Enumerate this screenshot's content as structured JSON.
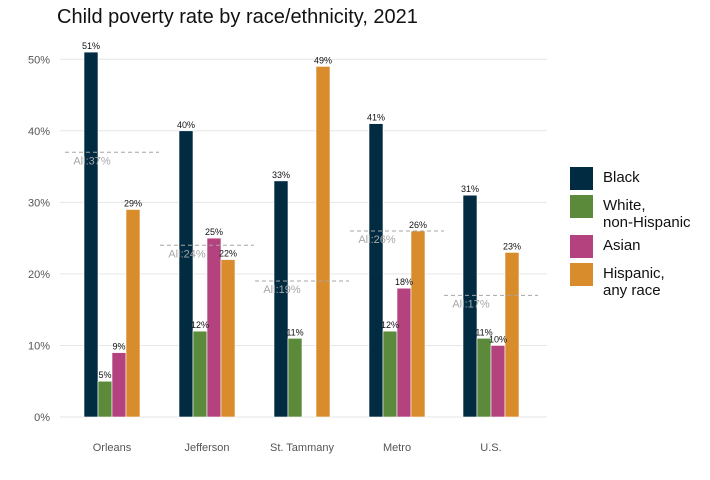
{
  "title": "Child poverty rate by race/ethnicity, 2021",
  "colors": {
    "Black": "#002b41",
    "White, non-Hispanic": "#5a8a3a",
    "Asian": "#b3427e",
    "Hispanic, any race": "#d98c2b",
    "grid": "#e6e6e6",
    "avg_line": "#a6a6a6",
    "avg_text": "#a6a6a6"
  },
  "legend": [
    {
      "key": "Black",
      "label": "Black"
    },
    {
      "key": "White, non-Hispanic",
      "label": "White,\nnon-Hispanic"
    },
    {
      "key": "Asian",
      "label": "Asian"
    },
    {
      "key": "Hispanic, any race",
      "label": "Hispanic,\nany race"
    }
  ],
  "chart_data": {
    "type": "bar",
    "title": "Child poverty rate by race/ethnicity, 2021",
    "xlabel": "",
    "ylabel": "",
    "ylim": [
      0,
      0.52
    ],
    "yticks": [
      0,
      0.1,
      0.2,
      0.3,
      0.4,
      0.5
    ],
    "ytick_labels": [
      "0%",
      "10%",
      "20%",
      "30%",
      "40%",
      "50%"
    ],
    "grid": true,
    "legend_position": "right",
    "categories": [
      "Orleans",
      "Jefferson",
      "St. Tammany",
      "Metro",
      "U.S."
    ],
    "series": [
      {
        "name": "Black",
        "values": [
          0.51,
          0.4,
          0.33,
          0.41,
          0.31
        ],
        "labels": [
          "51%",
          "40%",
          "33%",
          "41%",
          "31%"
        ]
      },
      {
        "name": "White, non-Hispanic",
        "values": [
          0.05,
          0.12,
          0.11,
          0.12,
          0.11
        ],
        "labels": [
          "5%",
          "12%",
          "11%",
          "12%",
          "11%"
        ]
      },
      {
        "name": "Asian",
        "values": [
          0.09,
          0.25,
          null,
          0.18,
          0.1
        ],
        "labels": [
          "9%",
          "25%",
          "",
          "18%",
          "10%"
        ]
      },
      {
        "name": "Hispanic, any race",
        "values": [
          0.29,
          0.22,
          0.49,
          0.26,
          0.23
        ],
        "labels": [
          "29%",
          "22%",
          "49%",
          "26%",
          "23%"
        ]
      }
    ],
    "all_average": {
      "values": [
        0.37,
        0.24,
        0.19,
        0.26,
        0.17
      ],
      "labels": [
        "All:37%",
        "All:24%",
        "All:19%",
        "All:26%",
        "All:17%"
      ]
    }
  }
}
